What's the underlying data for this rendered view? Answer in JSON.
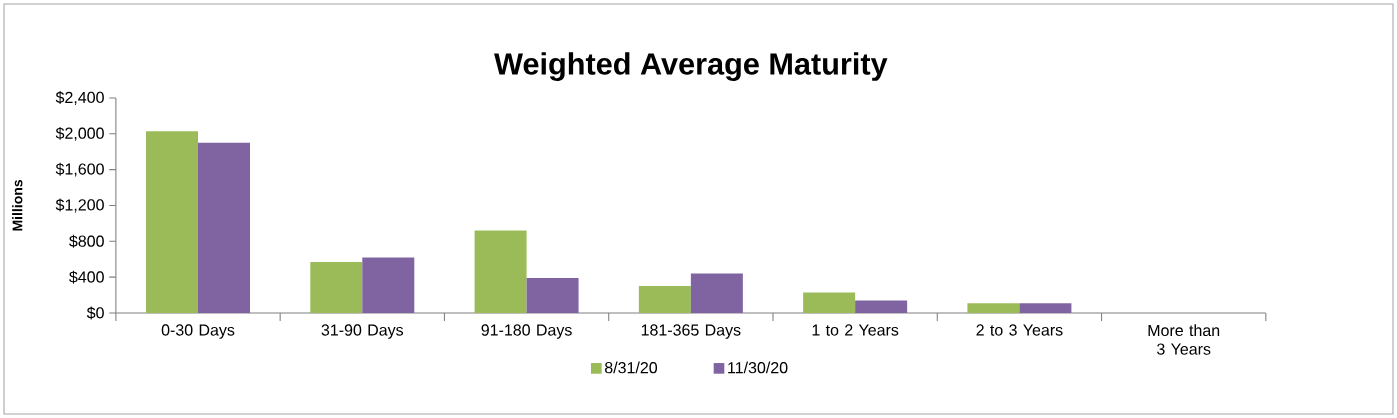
{
  "chart_data": {
    "type": "bar",
    "title": "Weighted Average Maturity",
    "ylabel": "Millions",
    "categories": [
      "0-30 Days",
      "31-90 Days",
      "91-180 Days",
      "181-365 Days",
      "1 to 2 Years",
      "2 to 3 Years",
      "More than 3 Years"
    ],
    "series": [
      {
        "name": "8/31/20",
        "color": "#9bbb59",
        "values": [
          2030,
          570,
          920,
          300,
          230,
          110,
          0
        ]
      },
      {
        "name": "11/30/20",
        "color": "#8064a2",
        "values": [
          1900,
          620,
          390,
          440,
          140,
          110,
          0
        ]
      }
    ],
    "ylim": [
      0,
      2400
    ],
    "yticks": [
      {
        "value": 0,
        "label": "$0"
      },
      {
        "value": 400,
        "label": "$400"
      },
      {
        "value": 800,
        "label": "$800"
      },
      {
        "value": 1200,
        "label": "$1,200"
      },
      {
        "value": 1600,
        "label": "$1,600"
      },
      {
        "value": 2000,
        "label": "$2,000"
      },
      {
        "value": 2400,
        "label": "$2,400"
      }
    ],
    "grid": false,
    "legend": "bottom"
  }
}
